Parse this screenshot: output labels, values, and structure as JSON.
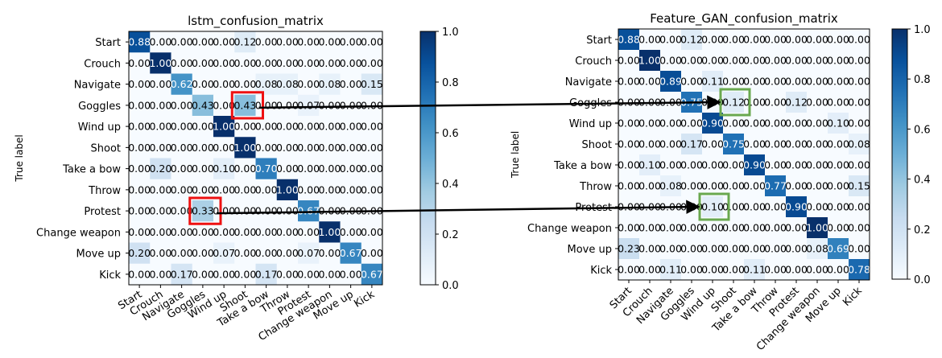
{
  "chart_data": [
    {
      "type": "heatmap",
      "title": "lstm_confusion_matrix",
      "ylabel": "True label",
      "xlabel": "",
      "labels": [
        "Start",
        "Crouch",
        "Navigate",
        "Goggles",
        "Wind up",
        "Shoot",
        "Take a bow",
        "Throw",
        "Protest",
        "Change weapon",
        "Move up",
        "Kick"
      ],
      "x_tick_labels": [
        "Start",
        "Crouch",
        "Navigate",
        "Goggles",
        "Wind up",
        "Shoot",
        "Take a bow",
        "Throw",
        "Protest",
        "Change weapon",
        "Move up",
        "Kick"
      ],
      "values": [
        [
          0.88,
          0.0,
          0.0,
          0.0,
          0.0,
          0.12,
          0.0,
          0.0,
          0.0,
          0.0,
          0.0,
          0.0
        ],
        [
          0.0,
          1.0,
          0.0,
          0.0,
          0.0,
          0.0,
          0.0,
          0.0,
          0.0,
          0.0,
          0.0,
          0.0
        ],
        [
          0.0,
          0.0,
          0.62,
          0.0,
          0.0,
          0.0,
          0.08,
          0.08,
          0.0,
          0.08,
          0.0,
          0.15
        ],
        [
          0.0,
          0.0,
          0.0,
          0.43,
          0.0,
          0.43,
          0.0,
          0.0,
          0.07,
          0.0,
          0.0,
          0.0
        ],
        [
          0.0,
          0.0,
          0.0,
          0.0,
          1.0,
          0.0,
          0.0,
          0.0,
          0.0,
          0.0,
          0.0,
          0.0
        ],
        [
          0.0,
          0.0,
          0.0,
          0.0,
          0.0,
          1.0,
          0.0,
          0.0,
          0.0,
          0.0,
          0.0,
          0.0
        ],
        [
          0.0,
          0.2,
          0.0,
          0.0,
          0.1,
          0.0,
          0.7,
          0.0,
          0.0,
          0.0,
          0.0,
          0.0
        ],
        [
          0.0,
          0.0,
          0.0,
          0.0,
          0.0,
          0.0,
          0.0,
          1.0,
          0.0,
          0.0,
          0.0,
          0.0
        ],
        [
          0.0,
          0.0,
          0.0,
          0.33,
          0.0,
          0.0,
          0.0,
          0.0,
          0.67,
          0.0,
          0.0,
          0.0
        ],
        [
          0.0,
          0.0,
          0.0,
          0.0,
          0.0,
          0.0,
          0.0,
          0.0,
          0.0,
          1.0,
          0.0,
          0.0
        ],
        [
          0.2,
          0.0,
          0.0,
          0.0,
          0.07,
          0.0,
          0.0,
          0.0,
          0.07,
          0.0,
          0.67,
          0.0
        ],
        [
          0.0,
          0.0,
          0.17,
          0.0,
          0.0,
          0.0,
          0.17,
          0.0,
          0.0,
          0.0,
          0.0,
          0.67
        ]
      ],
      "colorbar": {
        "min": 0.0,
        "max": 1.0,
        "ticks": [
          "0.0",
          "0.2",
          "0.4",
          "0.6",
          "0.8",
          "1.0"
        ],
        "colormap": "Blues"
      },
      "highlights": [
        {
          "row": 3,
          "col": 5,
          "color": "#ee1111"
        },
        {
          "row": 8,
          "col": 3,
          "color": "#ee1111"
        }
      ]
    },
    {
      "type": "heatmap",
      "title": "Feature_GAN_confusion_matrix",
      "ylabel": "True label",
      "xlabel": "",
      "labels": [
        "Start",
        "Crouch",
        "Navigate",
        "Goggles",
        "Wind up",
        "Shoot",
        "Take a bow",
        "Throw",
        "Protest",
        "Change weapon",
        "Move up",
        "Kick"
      ],
      "x_tick_labels": [
        "Start",
        "Crouch",
        "Navigate",
        "Goggles",
        "Wind up",
        "Shoot",
        "Take a bow",
        "Throw",
        "Protest",
        "Change weapon",
        "Move up",
        "Kick"
      ],
      "values": [
        [
          0.88,
          0.0,
          0.0,
          0.12,
          0.0,
          0.0,
          0.0,
          0.0,
          0.0,
          0.0,
          0.0,
          0.0
        ],
        [
          0.0,
          1.0,
          0.0,
          0.0,
          0.0,
          0.0,
          0.0,
          0.0,
          0.0,
          0.0,
          0.0,
          0.0
        ],
        [
          0.0,
          0.0,
          0.89,
          0.0,
          0.11,
          0.0,
          0.0,
          0.0,
          0.0,
          0.0,
          0.0,
          0.0
        ],
        [
          0.0,
          0.0,
          0.0,
          0.75,
          0.0,
          0.12,
          0.0,
          0.0,
          0.12,
          0.0,
          0.0,
          0.0
        ],
        [
          0.0,
          0.0,
          0.0,
          0.0,
          0.9,
          0.0,
          0.0,
          0.0,
          0.0,
          0.0,
          0.1,
          0.0
        ],
        [
          0.0,
          0.0,
          0.0,
          0.17,
          0.0,
          0.75,
          0.0,
          0.0,
          0.0,
          0.0,
          0.0,
          0.08
        ],
        [
          0.0,
          0.1,
          0.0,
          0.0,
          0.0,
          0.0,
          0.9,
          0.0,
          0.0,
          0.0,
          0.0,
          0.0
        ],
        [
          0.0,
          0.0,
          0.08,
          0.0,
          0.0,
          0.0,
          0.0,
          0.77,
          0.0,
          0.0,
          0.0,
          0.15
        ],
        [
          0.0,
          0.0,
          0.0,
          0.0,
          0.1,
          0.0,
          0.0,
          0.0,
          0.9,
          0.0,
          0.0,
          0.0
        ],
        [
          0.0,
          0.0,
          0.0,
          0.0,
          0.0,
          0.0,
          0.0,
          0.0,
          0.0,
          1.0,
          0.0,
          0.0
        ],
        [
          0.23,
          0.0,
          0.0,
          0.0,
          0.0,
          0.0,
          0.0,
          0.0,
          0.0,
          0.08,
          0.69,
          0.0
        ],
        [
          0.0,
          0.0,
          0.11,
          0.0,
          0.0,
          0.0,
          0.11,
          0.0,
          0.0,
          0.0,
          0.0,
          0.78
        ]
      ],
      "colorbar": {
        "min": 0.0,
        "max": 1.0,
        "ticks": [
          "0.0",
          "0.2",
          "0.4",
          "0.6",
          "0.8",
          "1.0"
        ],
        "colormap": "Blues"
      },
      "highlights": [
        {
          "row": 3,
          "col": 5,
          "color": "#6aa84f"
        },
        {
          "row": 8,
          "col": 4,
          "color": "#6aa84f"
        }
      ]
    }
  ],
  "arrows": [
    {
      "from": {
        "chart": 0,
        "row": 3,
        "col": 5
      },
      "to": {
        "chart": 1,
        "row": 3,
        "col": 5
      },
      "color": "#000000"
    },
    {
      "from": {
        "chart": 0,
        "row": 8,
        "col": 3
      },
      "to": {
        "chart": 1,
        "row": 8,
        "col": 4
      },
      "color": "#000000"
    }
  ]
}
